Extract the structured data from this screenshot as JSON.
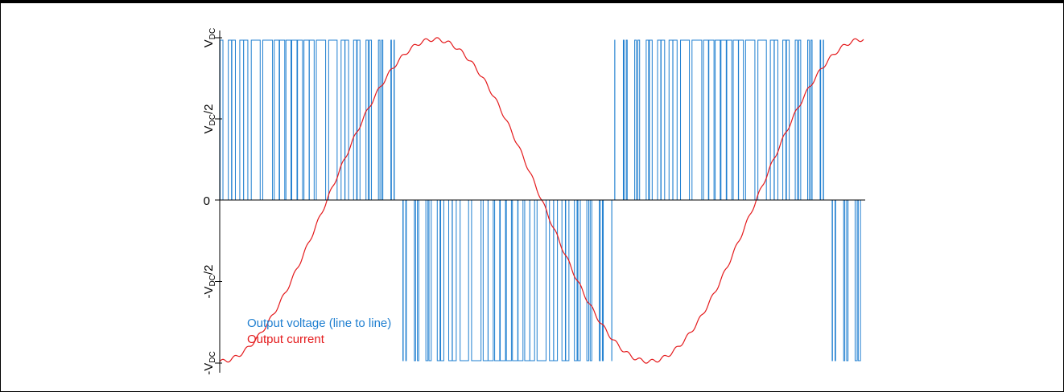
{
  "chart_data": {
    "type": "line",
    "title": "",
    "xlabel": "",
    "ylabel": "",
    "y_ticks": [
      {
        "value": 1,
        "parts": [
          "V",
          "DC",
          ""
        ]
      },
      {
        "value": 0.5,
        "parts": [
          "V",
          "DC",
          "/2"
        ]
      },
      {
        "value": 0,
        "parts": [
          "0",
          "",
          ""
        ]
      },
      {
        "value": -0.5,
        "parts": [
          "-V",
          "DC",
          "/2"
        ]
      },
      {
        "value": -1,
        "parts": [
          "-V",
          "DC",
          ""
        ]
      }
    ],
    "ylim": [
      -1.05,
      1.05
    ],
    "xlim": [
      0,
      1.5
    ],
    "grid": false,
    "legend": "lower-left",
    "series": [
      {
        "name": "Output voltage (line to line)",
        "color": "#1f7fd0",
        "kind": "pwm",
        "levels": [
          -1,
          0,
          1
        ],
        "carrier_periods_per_cycle": 36,
        "modulation_index": 1.0
      },
      {
        "name": "Output current",
        "color": "#e41a1c",
        "kind": "sine",
        "amplitude": 0.99,
        "phase_shift_cycles": 0.25,
        "x": [
          0,
          0.125,
          0.25,
          0.375,
          0.5,
          0.625,
          0.75,
          0.875,
          1.0,
          1.125,
          1.25,
          1.375,
          1.5
        ],
        "y": [
          -0.92,
          -0.53,
          0.05,
          0.6,
          0.95,
          0.92,
          0.52,
          -0.05,
          -0.6,
          -0.95,
          -0.93,
          -0.53,
          0.05
        ]
      }
    ],
    "axis_color": "#000000"
  }
}
